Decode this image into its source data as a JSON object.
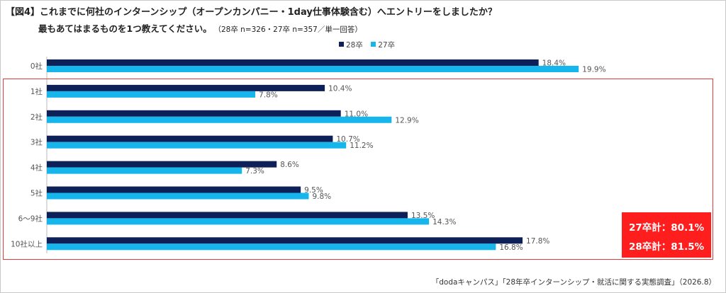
{
  "title": "【図4】これまでに何社のインターンシップ（オープンカンパニー・1day仕事体験含む）へエントリーをしましたか？",
  "subtitle": "最もあてはまるものを1つ教えてください。",
  "sample_note": "（28卒 n=326・27卒 n=357／単一回答）",
  "source": "「dodaキャンパス」「28年卒インターンシップ・就活に関する実態調査」（2026.8）",
  "totals": {
    "line1": "27卒計：80.1%",
    "line2": "28卒計：81.5%"
  },
  "colors": {
    "series28": "#0d2057",
    "series27": "#16b5ec",
    "highlight": "#e23a3a",
    "totals_bg": "#ff1e1e"
  },
  "chart_data": {
    "type": "bar",
    "orientation": "horizontal",
    "categories": [
      "0社",
      "1社",
      "2社",
      "3社",
      "4社",
      "5社",
      "6〜9社",
      "10社以上"
    ],
    "series": [
      {
        "name": "28卒",
        "values": [
          18.4,
          10.4,
          11.0,
          10.7,
          8.6,
          9.5,
          13.5,
          17.8
        ],
        "labels": [
          "18.4%",
          "10.4%",
          "11.0%",
          "10.7%",
          "8.6%",
          "9.5%",
          "13.5%",
          "17.8%"
        ]
      },
      {
        "name": "27卒",
        "values": [
          19.9,
          7.8,
          12.9,
          11.2,
          7.3,
          9.8,
          14.3,
          16.8
        ],
        "labels": [
          "19.9%",
          "7.8%",
          "12.9%",
          "11.2%",
          "7.3%",
          "9.8%",
          "14.3%",
          "16.8%"
        ]
      }
    ],
    "legend": "top-center",
    "grid": false
  }
}
